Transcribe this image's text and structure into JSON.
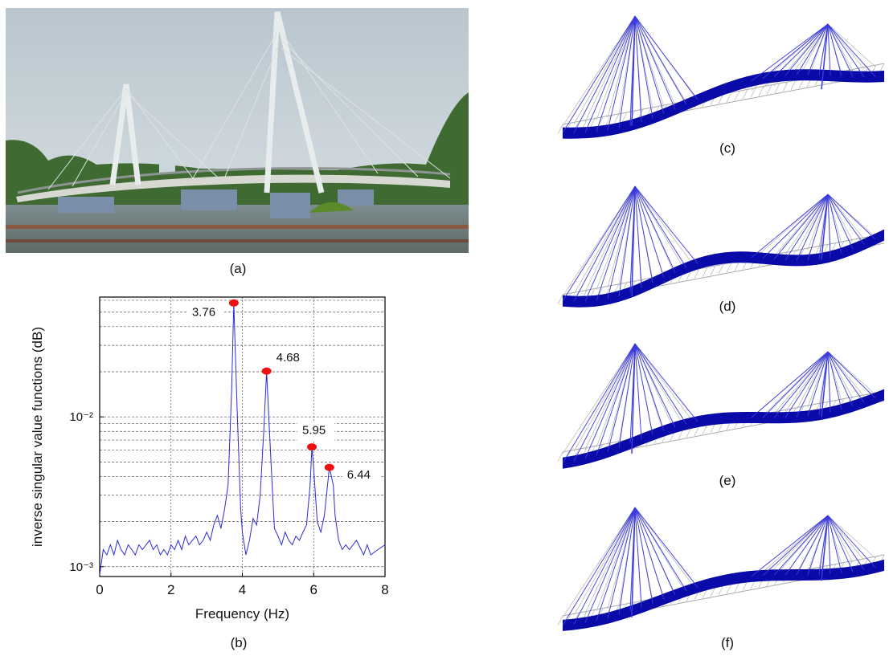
{
  "panels": {
    "a": "(a)",
    "b": "(b)",
    "c": "(c)",
    "d": "(d)",
    "e": "(e)",
    "f": "(f)"
  },
  "chart_data": {
    "type": "line",
    "xlabel": "Frequency (Hz)",
    "ylabel": "inverse singular value functions (dB)",
    "color": "#2b2bdc",
    "log_y": true,
    "grid": true,
    "xlim": [
      0,
      8
    ],
    "xticks": [
      0,
      2,
      4,
      6,
      8
    ],
    "ylim": [
      0.00086,
      0.063
    ],
    "yticks": [
      {
        "value": 0.001,
        "label": "10⁻³"
      },
      {
        "value": 0.01,
        "label": "10⁻²"
      }
    ],
    "y_minor_ticks": [
      0.002,
      0.003,
      0.004,
      0.005,
      0.006,
      0.007,
      0.008,
      0.009,
      0.02,
      0.03,
      0.04,
      0.05,
      0.06
    ],
    "x": [
      0.0,
      0.1,
      0.2,
      0.3,
      0.4,
      0.5,
      0.6,
      0.7,
      0.8,
      0.9,
      1.0,
      1.1,
      1.2,
      1.3,
      1.4,
      1.5,
      1.6,
      1.7,
      1.8,
      1.9,
      2.0,
      2.1,
      2.2,
      2.3,
      2.4,
      2.5,
      2.6,
      2.7,
      2.8,
      2.9,
      3.0,
      3.1,
      3.2,
      3.3,
      3.4,
      3.5,
      3.6,
      3.7,
      3.76,
      3.85,
      3.95,
      4.0,
      4.1,
      4.2,
      4.3,
      4.4,
      4.5,
      4.6,
      4.68,
      4.75,
      4.85,
      4.9,
      5.0,
      5.1,
      5.2,
      5.3,
      5.4,
      5.5,
      5.6,
      5.7,
      5.8,
      5.9,
      5.95,
      6.0,
      6.1,
      6.2,
      6.3,
      6.44,
      6.55,
      6.6,
      6.7,
      6.8,
      6.9,
      7.0,
      7.2,
      7.4,
      7.5,
      7.6,
      7.8,
      8.0
    ],
    "values": [
      0.00088,
      0.0013,
      0.0012,
      0.0014,
      0.0012,
      0.0015,
      0.0013,
      0.0012,
      0.0014,
      0.0013,
      0.0012,
      0.0014,
      0.0013,
      0.0014,
      0.0015,
      0.0013,
      0.0014,
      0.0012,
      0.0013,
      0.0012,
      0.0014,
      0.0013,
      0.0015,
      0.0013,
      0.0016,
      0.0014,
      0.0015,
      0.0016,
      0.0014,
      0.0015,
      0.0017,
      0.0015,
      0.0019,
      0.0022,
      0.0018,
      0.0024,
      0.0035,
      0.015,
      0.0576,
      0.012,
      0.0025,
      0.0017,
      0.0012,
      0.0015,
      0.0021,
      0.0019,
      0.003,
      0.008,
      0.0202,
      0.009,
      0.003,
      0.0018,
      0.0016,
      0.0014,
      0.0017,
      0.0015,
      0.0014,
      0.0016,
      0.0015,
      0.0017,
      0.0019,
      0.0035,
      0.0063,
      0.0045,
      0.002,
      0.0017,
      0.0022,
      0.0046,
      0.0035,
      0.0022,
      0.0015,
      0.0013,
      0.0014,
      0.0013,
      0.0015,
      0.0012,
      0.0014,
      0.0012,
      0.0013,
      0.0014
    ],
    "peaks": {
      "color": "#ee1111",
      "x": [
        3.76,
        4.68,
        5.95,
        6.44
      ],
      "values": [
        0.0576,
        0.0202,
        0.0063,
        0.0046
      ]
    }
  }
}
